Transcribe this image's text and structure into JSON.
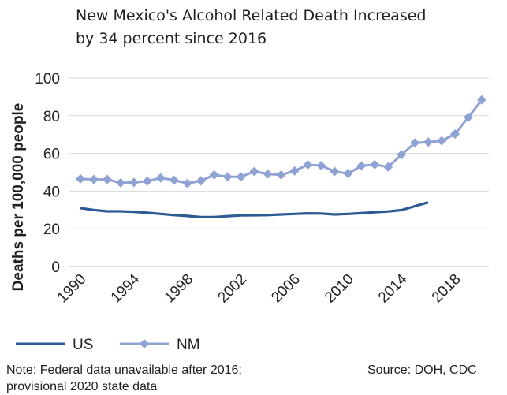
{
  "title": {
    "line1": "New Mexico's Alcohol Related Death Increased",
    "line2": "by 34 percent since 2016"
  },
  "note": {
    "line1": "Note: Federal data unavailable after 2016;",
    "line2": "provisional 2020 state data"
  },
  "source": "Source: DOH, CDC",
  "chart_data": {
    "type": "line",
    "title": "New Mexico's Alcohol Related Death Increased by 34 percent since 2016",
    "xlabel": "",
    "ylabel": "Deaths per 100,000 people",
    "xlim": [
      1990,
      2020
    ],
    "ylim": [
      0,
      100
    ],
    "x_ticks": [
      "1990",
      "1994",
      "1998",
      "2002",
      "2006",
      "2010",
      "2014",
      "2018"
    ],
    "y_ticks": [
      "0",
      "20",
      "40",
      "60",
      "80",
      "100"
    ],
    "grid": true,
    "legend_position": "bottom-left",
    "series": [
      {
        "name": "US",
        "color": "#2e5a94",
        "marker": "none",
        "x": [
          1990,
          1991,
          1992,
          1993,
          1994,
          1995,
          1996,
          1997,
          1998,
          1999,
          2000,
          2001,
          2002,
          2003,
          2004,
          2005,
          2006,
          2007,
          2008,
          2009,
          2010,
          2011,
          2012,
          2013,
          2014,
          2015,
          2016
        ],
        "values": [
          31.0,
          30.0,
          29.3,
          29.3,
          29.0,
          28.5,
          27.9,
          27.3,
          26.8,
          26.2,
          26.2,
          26.7,
          27.1,
          27.2,
          27.3,
          27.6,
          27.9,
          28.2,
          28.1,
          27.6,
          27.9,
          28.3,
          28.8,
          29.2,
          29.9,
          32.0,
          34.0
        ]
      },
      {
        "name": "NM",
        "color": "#8fa2d4",
        "marker": "diamond",
        "x": [
          1990,
          1991,
          1992,
          1993,
          1994,
          1995,
          1996,
          1997,
          1998,
          1999,
          2000,
          2001,
          2002,
          2003,
          2004,
          2005,
          2006,
          2007,
          2008,
          2009,
          2010,
          2011,
          2012,
          2013,
          2014,
          2015,
          2016,
          2017,
          2018,
          2019,
          2020
        ],
        "values": [
          46.5,
          46.2,
          46.2,
          44.4,
          44.6,
          45.3,
          47.0,
          45.8,
          44.1,
          45.4,
          48.6,
          47.6,
          47.6,
          50.4,
          49.1,
          48.6,
          50.7,
          54.0,
          53.5,
          50.4,
          49.3,
          53.4,
          54.1,
          52.8,
          59.3,
          65.6,
          66.0,
          66.7,
          70.3,
          79.2,
          88.4
        ]
      }
    ]
  }
}
